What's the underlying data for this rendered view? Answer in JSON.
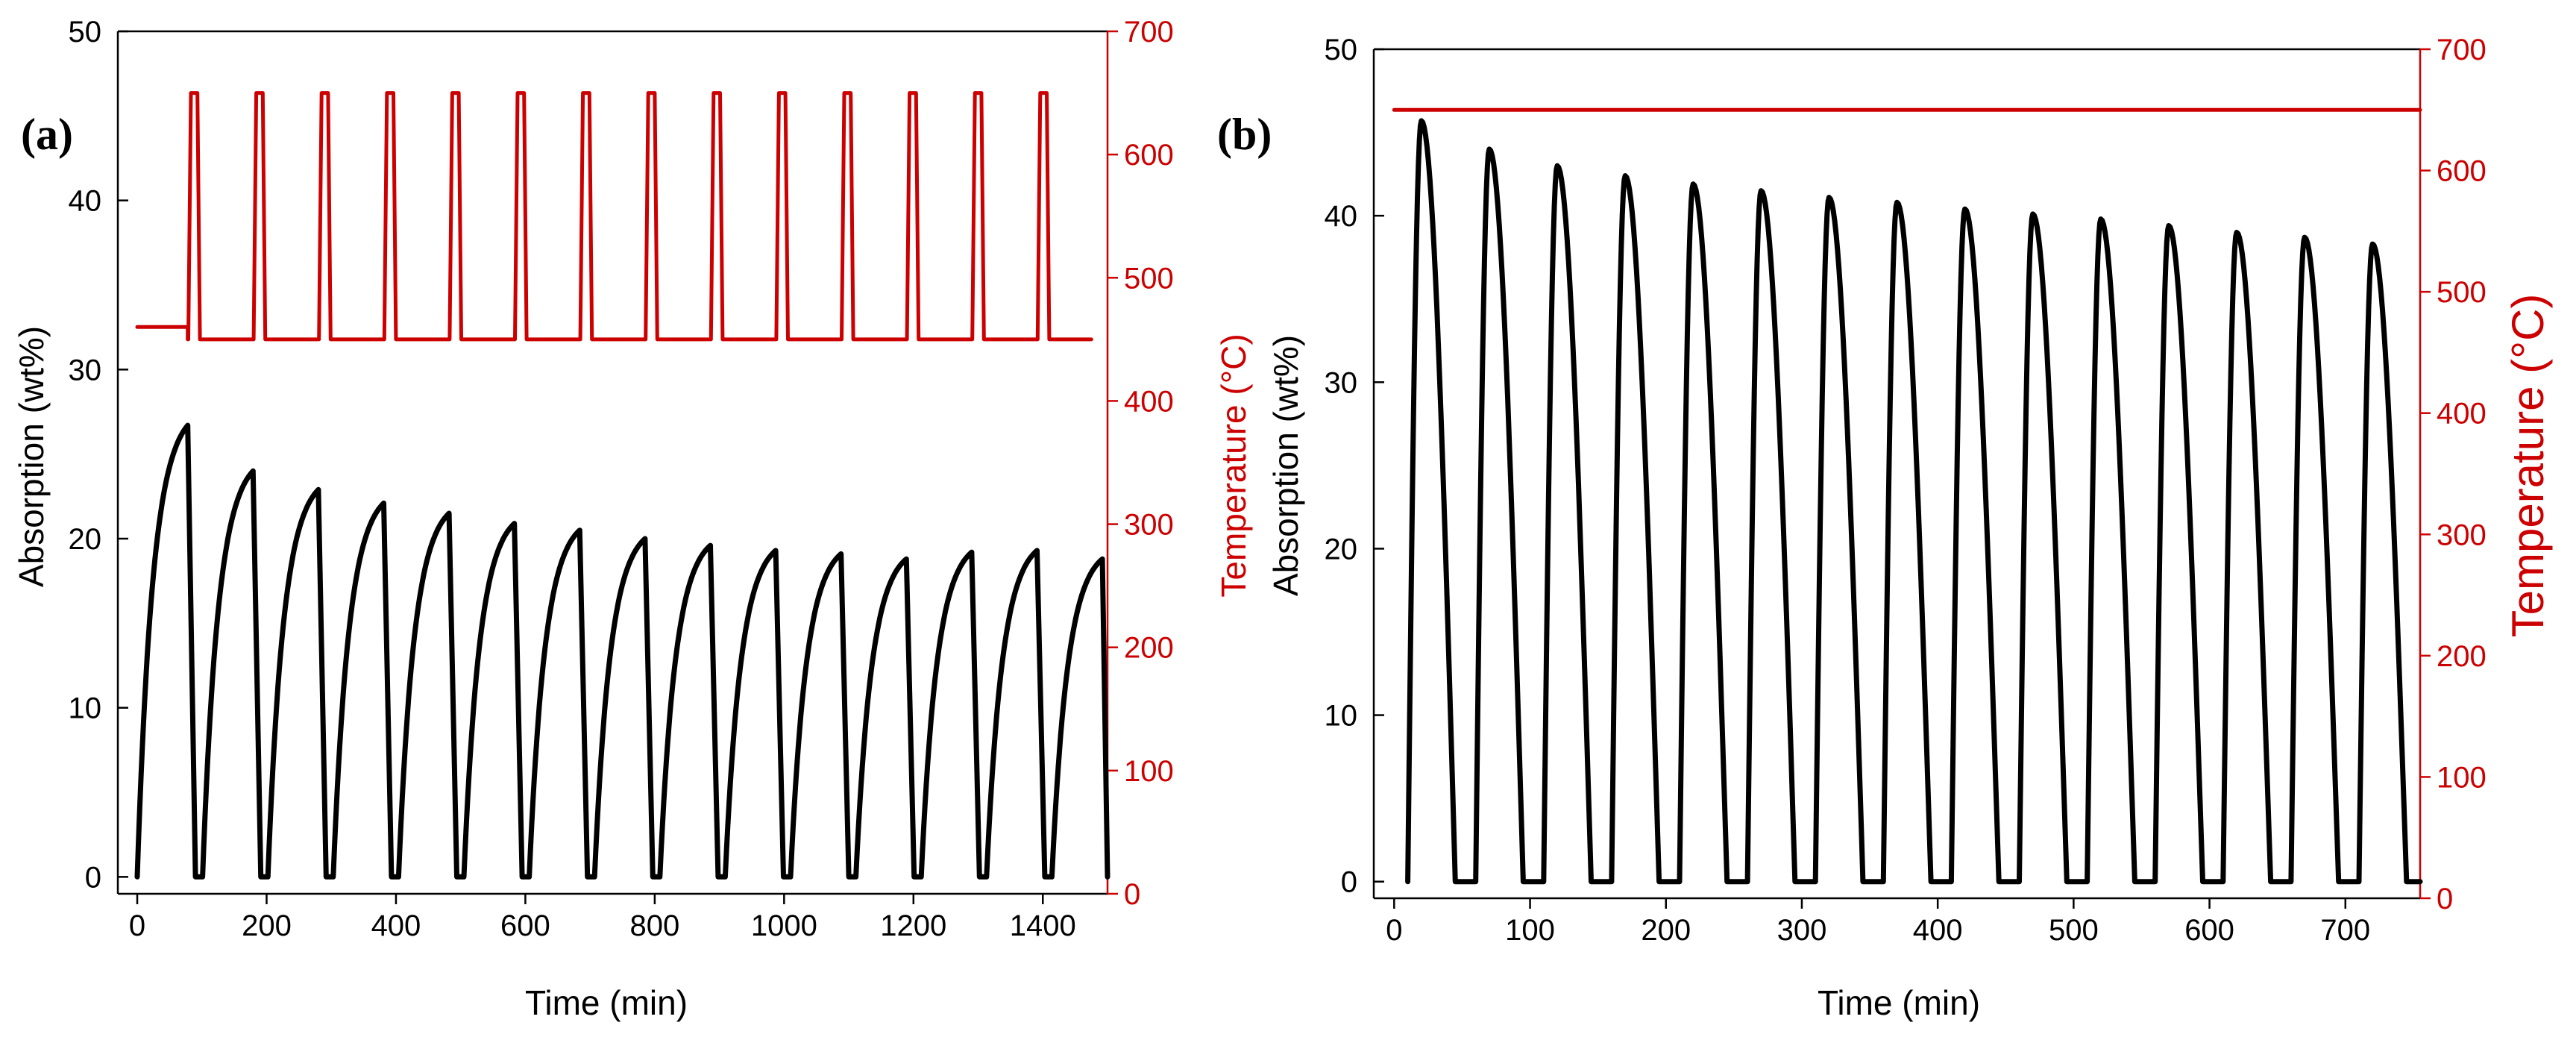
{
  "colors": {
    "absorption": "#000000",
    "temperature": "#cc0000",
    "axis": "#000000",
    "background": "#ffffff"
  },
  "chart_data": [
    {
      "type": "line",
      "panel_label": "(a)",
      "xlabel": "Time (min)",
      "ylabel_left": "Absorption (wt%)",
      "ylabel_right": "Temperature (°C)",
      "xlim": [
        -30,
        1500
      ],
      "ylim_left": [
        -1,
        50
      ],
      "ylim_right": [
        0,
        700
      ],
      "xticks": [
        0,
        200,
        400,
        600,
        800,
        1000,
        1200,
        1400
      ],
      "xtick_labels": [
        "0",
        "200",
        "400",
        "600",
        "800",
        "1000",
        "1200",
        "1400"
      ],
      "yticks_left": [
        0,
        10,
        20,
        30,
        40,
        50
      ],
      "ytick_labels_left": [
        "0",
        "10",
        "20",
        "30",
        "40",
        "50"
      ],
      "yticks_right": [
        0,
        100,
        200,
        300,
        400,
        500,
        600,
        700
      ],
      "ytick_labels_right": [
        "0",
        "100",
        "200",
        "300",
        "400",
        "500",
        "600",
        "700"
      ],
      "grid": false,
      "series": [
        {
          "name": "Absorption",
          "axis": "left",
          "cycles": {
            "start": 0,
            "period": 101,
            "count": 15,
            "absorb_duration": 78,
            "desorb_duration": 12,
            "baseline": 0,
            "peaks": [
              26.7,
              24.0,
              22.9,
              22.1,
              21.5,
              20.9,
              20.5,
              20.0,
              19.6,
              19.3,
              19.1,
              18.8,
              19.2,
              19.3,
              18.8
            ]
          }
        },
        {
          "name": "Temperature",
          "axis": "right",
          "square_wave": {
            "start": 0,
            "end": 1475,
            "low": 450,
            "high": 650,
            "initial_low": 460,
            "first_high_start": 79,
            "period": 101,
            "count": 14,
            "ramp": 4,
            "plateau": 10
          }
        }
      ]
    },
    {
      "type": "line",
      "panel_label": "(b)",
      "xlabel": "Time (min)",
      "ylabel_left": "Absorption (wt%)",
      "ylabel_right": "Temperature (°C)",
      "xlim": [
        -15,
        755
      ],
      "ylim_left": [
        -1,
        50
      ],
      "ylim_right": [
        0,
        700
      ],
      "xticks": [
        0,
        100,
        200,
        300,
        400,
        500,
        600,
        700
      ],
      "xtick_labels": [
        "0",
        "100",
        "200",
        "300",
        "400",
        "500",
        "600",
        "700"
      ],
      "yticks_left": [
        0,
        10,
        20,
        30,
        40,
        50
      ],
      "ytick_labels_left": [
        "0",
        "10",
        "20",
        "30",
        "40",
        "50"
      ],
      "yticks_right": [
        0,
        100,
        200,
        300,
        400,
        500,
        600,
        700
      ],
      "ytick_labels_right": [
        "0",
        "100",
        "200",
        "300",
        "400",
        "500",
        "600",
        "700"
      ],
      "grid": false,
      "series": [
        {
          "name": "Absorption",
          "axis": "left",
          "cycles": {
            "start": 10,
            "period": 50,
            "count": 15,
            "peak_offset": 10,
            "desorb_duration": 25,
            "baseline": 0,
            "peaks": [
              45.7,
              44.0,
              43.0,
              42.4,
              41.9,
              41.5,
              41.1,
              40.8,
              40.4,
              40.1,
              39.8,
              39.4,
              39.0,
              38.7,
              38.3
            ]
          }
        },
        {
          "name": "Temperature",
          "axis": "right",
          "constant": {
            "start": 0,
            "end": 755,
            "value": 650
          }
        }
      ]
    }
  ]
}
